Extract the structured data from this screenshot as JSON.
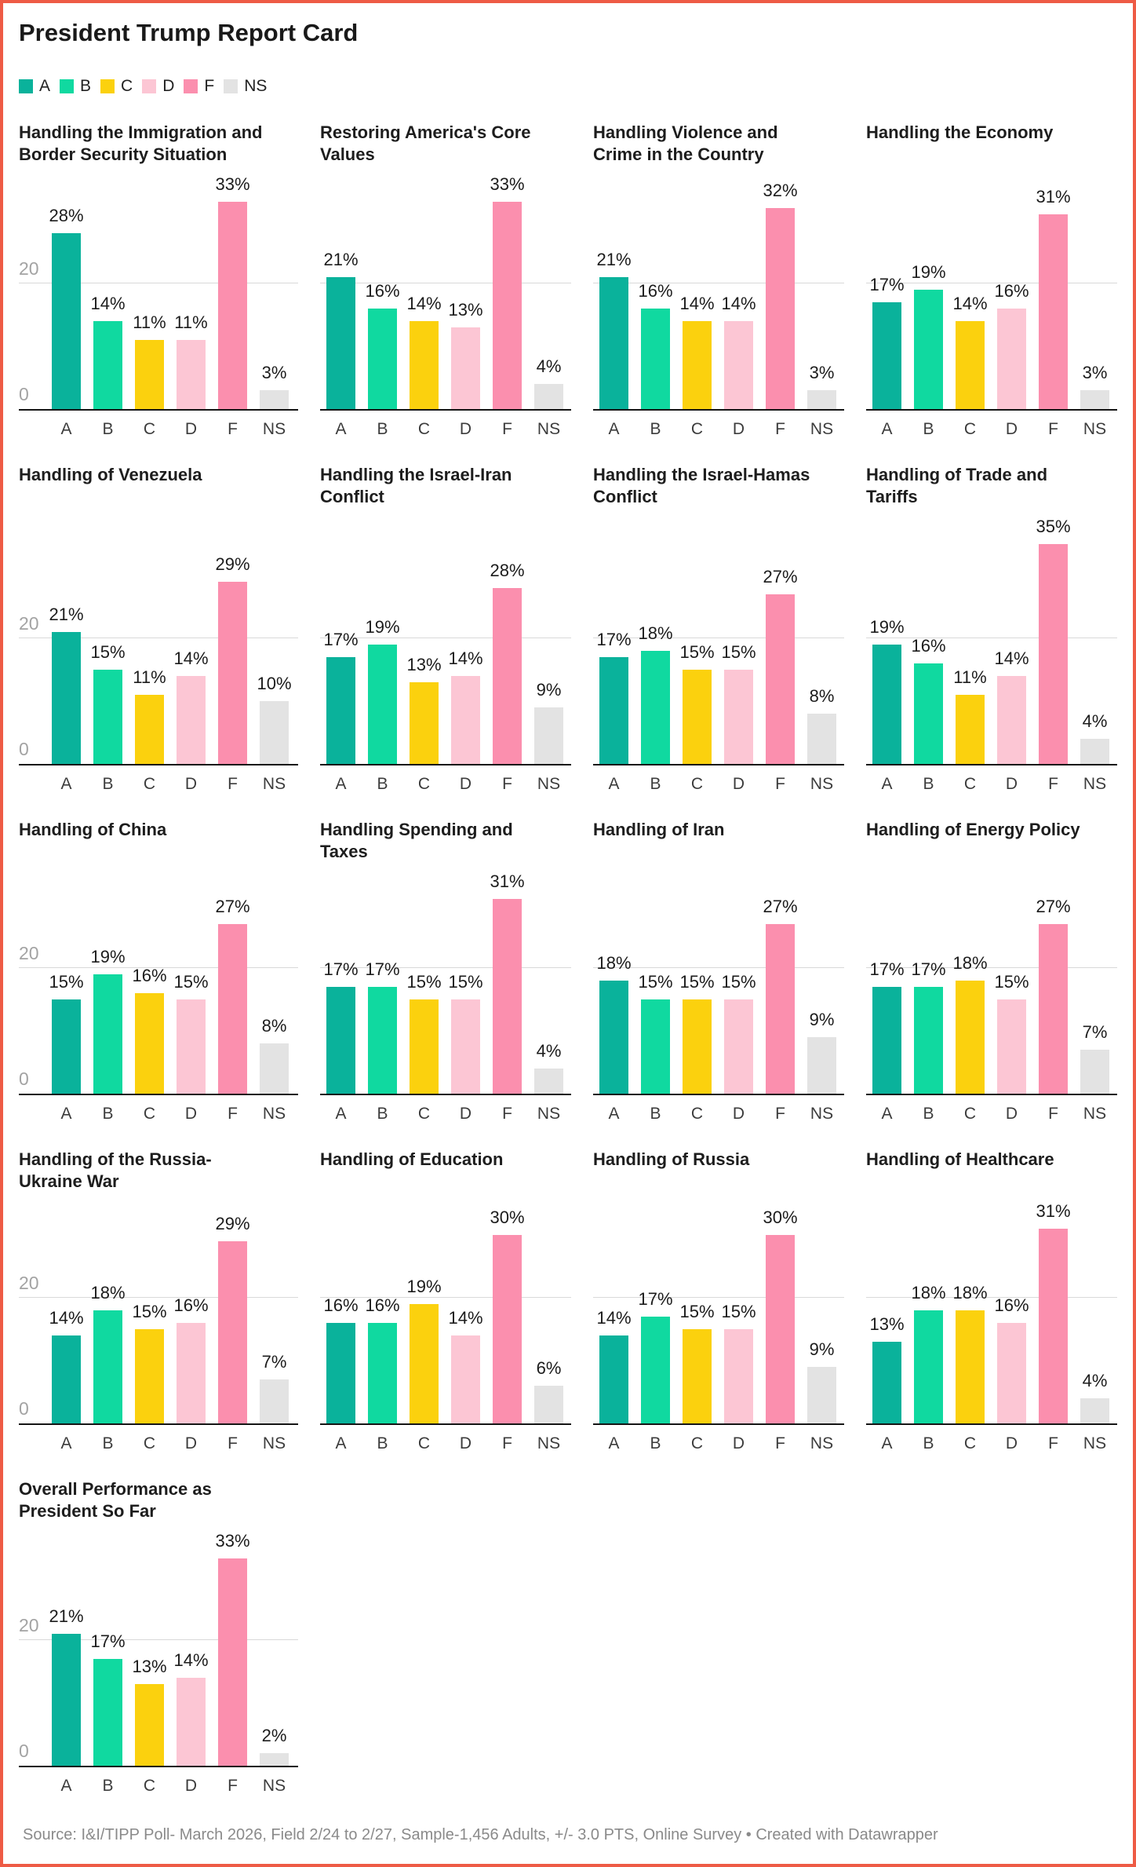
{
  "page": {
    "title": "President Trump Report Card",
    "border_color": "#EE5B45",
    "footer": "Source: I&I/TIPP Poll- March 2026, Field 2/24 to 2/27, Sample-1,456 Adults, +/- 3.0 PTS, Online Survey • Created with Datawrapper"
  },
  "legend": {
    "items": [
      {
        "label": "A",
        "color": "#0AB29B"
      },
      {
        "label": "B",
        "color": "#10D9A0"
      },
      {
        "label": "C",
        "color": "#FBD10E"
      },
      {
        "label": "D",
        "color": "#FCC6D4"
      },
      {
        "label": "F",
        "color": "#FB8FAE"
      },
      {
        "label": "NS",
        "color": "#E3E3E3"
      }
    ]
  },
  "chart_data": {
    "type": "bar",
    "categories": [
      "A",
      "B",
      "C",
      "D",
      "F",
      "NS"
    ],
    "palette": [
      "#0AB29B",
      "#10D9A0",
      "#FBD10E",
      "#FCC6D4",
      "#FB8FAE",
      "#E3E3E3"
    ],
    "y_ticks": [
      "0",
      "20"
    ],
    "ylabel": "",
    "xlabel": "",
    "ylim": [
      0,
      40
    ],
    "grid": "y-at-20",
    "legend_position": "top",
    "unit": "%",
    "charts": [
      {
        "title": "Handling the Immigration and Border Security Situation",
        "values": [
          28,
          14,
          11,
          11,
          33,
          3
        ]
      },
      {
        "title": "Restoring America's Core Values",
        "values": [
          21,
          16,
          14,
          13,
          33,
          4
        ]
      },
      {
        "title": "Handling Violence and Crime in the Country",
        "values": [
          21,
          16,
          14,
          14,
          32,
          3
        ]
      },
      {
        "title": "Handling the Economy",
        "values": [
          17,
          19,
          14,
          16,
          31,
          3
        ]
      },
      {
        "title": "Handling of Venezuela",
        "values": [
          21,
          15,
          11,
          14,
          29,
          10
        ]
      },
      {
        "title": "Handling the Israel-Iran Conflict",
        "values": [
          17,
          19,
          13,
          14,
          28,
          9
        ]
      },
      {
        "title": "Handling the Israel-Hamas Conflict",
        "values": [
          17,
          18,
          15,
          15,
          27,
          8
        ]
      },
      {
        "title": "Handling of Trade and Tariffs",
        "values": [
          19,
          16,
          11,
          14,
          35,
          4
        ]
      },
      {
        "title": "Handling of China",
        "values": [
          15,
          19,
          16,
          15,
          27,
          8
        ]
      },
      {
        "title": "Handling Spending and Taxes",
        "values": [
          17,
          17,
          15,
          15,
          31,
          4
        ]
      },
      {
        "title": "Handling of Iran",
        "values": [
          18,
          15,
          15,
          15,
          27,
          9
        ]
      },
      {
        "title": "Handling of Energy Policy",
        "values": [
          17,
          17,
          18,
          15,
          27,
          7
        ]
      },
      {
        "title": "Handling of the Russia-Ukraine War",
        "values": [
          14,
          18,
          15,
          16,
          29,
          7
        ]
      },
      {
        "title": "Handling of Education",
        "values": [
          16,
          16,
          19,
          14,
          30,
          6
        ]
      },
      {
        "title": "Handling of Russia",
        "values": [
          14,
          17,
          15,
          15,
          30,
          9
        ]
      },
      {
        "title": "Handling of Healthcare",
        "values": [
          13,
          18,
          18,
          16,
          31,
          4
        ]
      },
      {
        "title": "Overall Performance as President So Far",
        "values": [
          21,
          17,
          13,
          14,
          33,
          2
        ]
      }
    ]
  }
}
